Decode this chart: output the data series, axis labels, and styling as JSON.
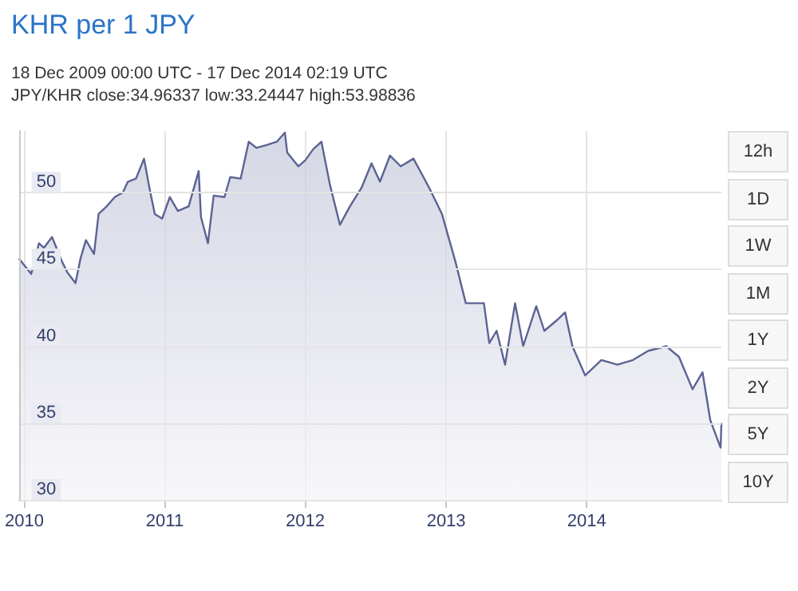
{
  "chart_data": {
    "type": "area",
    "title": "KHR per 1 JPY",
    "subtitle": "18 Dec 2009 00:00 UTC - 17 Dec 2014 02:19 UTC",
    "annotations": [
      "JPY/KHR close:34.96337 low:33.24447 high:53.98836",
      "12h",
      "1D",
      "1W",
      "1M",
      "1Y",
      "2Y",
      "5Y",
      "10Y"
    ],
    "x": [
      "2009-12-18",
      "2010-01-19",
      "2010-02-08",
      "2010-02-21",
      "2010-03-14",
      "2010-04-09",
      "2010-04-23",
      "2010-05-14",
      "2010-05-27",
      "2010-06-10",
      "2010-07-01",
      "2010-07-13",
      "2010-08-03",
      "2010-08-24",
      "2010-09-14",
      "2010-09-27",
      "2010-10-18",
      "2010-11-08",
      "2010-11-22",
      "2010-12-06",
      "2010-12-25",
      "2011-01-14",
      "2011-02-04",
      "2011-03-04",
      "2011-03-30",
      "2011-04-05",
      "2011-04-23",
      "2011-05-08",
      "2011-06-05",
      "2011-06-20",
      "2011-07-17",
      "2011-08-07",
      "2011-08-27",
      "2011-09-24",
      "2011-10-19",
      "2011-11-09",
      "2011-11-15",
      "2011-12-14",
      "2012-01-01",
      "2012-01-21",
      "2012-02-12",
      "2012-03-05",
      "2012-03-31",
      "2012-04-26",
      "2012-05-26",
      "2012-06-21",
      "2012-07-13",
      "2012-08-08",
      "2012-09-05",
      "2012-10-08",
      "2012-11-18",
      "2012-12-21",
      "2013-01-25",
      "2013-02-21",
      "2013-04-09",
      "2013-04-23",
      "2013-05-12",
      "2013-06-03",
      "2013-06-29",
      "2013-07-20",
      "2013-08-23",
      "2013-09-13",
      "2013-10-16",
      "2013-11-06",
      "2013-11-25",
      "2013-12-28",
      "2014-02-08",
      "2014-03-22",
      "2014-05-01",
      "2014-06-10",
      "2014-07-27",
      "2014-08-29",
      "2014-10-03",
      "2014-10-29",
      "2014-11-18",
      "2014-12-15",
      "2014-12-17"
    ],
    "series": [
      {
        "color": "#5b6394",
        "values": [
          45.7,
          44.7,
          46.7,
          46.4,
          47.1,
          45.5,
          44.8,
          44.1,
          45.7,
          46.9,
          46.0,
          48.6,
          49.1,
          49.7,
          50.0,
          50.7,
          50.9,
          52.2,
          50.3,
          48.6,
          48.3,
          49.7,
          48.8,
          49.1,
          51.4,
          48.4,
          46.7,
          49.8,
          49.7,
          51.0,
          50.9,
          53.3,
          52.9,
          53.1,
          53.3,
          53.9,
          52.6,
          51.7,
          52.1,
          52.8,
          53.3,
          50.5,
          47.9,
          49.1,
          50.3,
          51.9,
          50.7,
          52.4,
          51.7,
          52.2,
          50.3,
          48.6,
          45.5,
          42.8,
          42.8,
          40.2,
          41.0,
          38.8,
          42.8,
          40.0,
          42.6,
          41.0,
          41.7,
          42.2,
          40.0,
          38.1,
          39.1,
          38.8,
          39.1,
          39.7,
          40.0,
          39.3,
          37.2,
          38.3,
          35.2,
          33.4,
          35.0
        ]
      }
    ],
    "xlim": [
      "2009-12-18",
      "2014-12-17"
    ],
    "xticks": [
      {
        "value": "2010-01-01",
        "label": "2010"
      },
      {
        "value": "2011-01-01",
        "label": "2011"
      },
      {
        "value": "2012-01-01",
        "label": "2012"
      },
      {
        "value": "2013-01-01",
        "label": "2013"
      },
      {
        "value": "2014-01-01",
        "label": "2014"
      }
    ],
    "ylim": [
      30,
      54
    ],
    "yticks": [
      30,
      35,
      40,
      45,
      50
    ],
    "grid": true,
    "marker": "none",
    "line_style": "solid"
  }
}
